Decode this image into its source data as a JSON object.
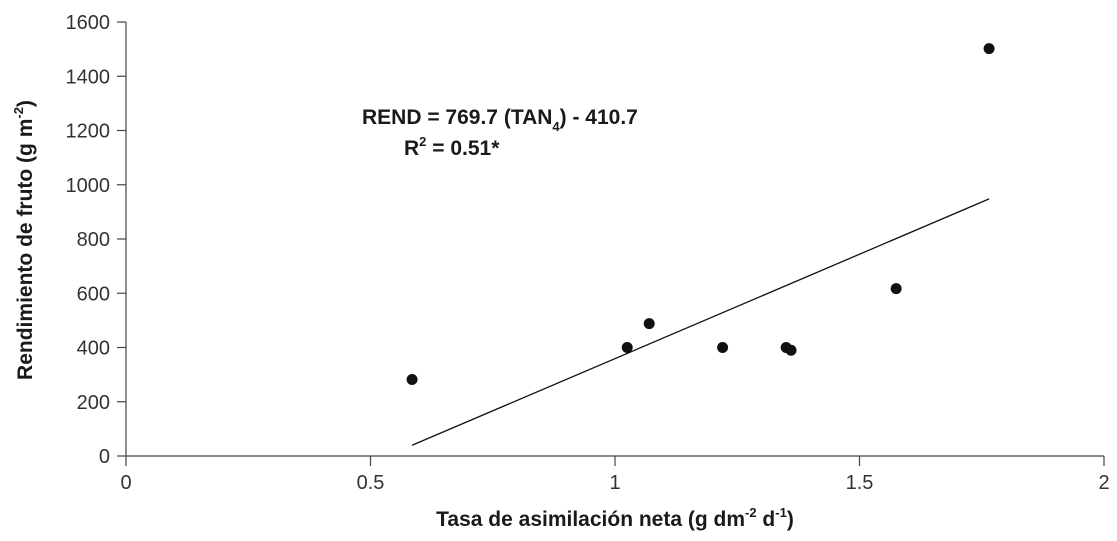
{
  "chart_data": {
    "type": "scatter",
    "xlabel": {
      "main": "Tasa de asimilación neta (g dm",
      "sup1": "-2",
      "mid": " d",
      "sup2": "-1",
      "end": ")"
    },
    "ylabel": {
      "main": "Rendimiento de fruto (g m",
      "sup": "-2",
      "end": ")"
    },
    "xlim": [
      0,
      2
    ],
    "ylim": [
      0,
      1600
    ],
    "xticks": [
      0,
      0.5,
      1,
      1.5,
      2
    ],
    "xtick_labels": [
      "0",
      "0.5",
      "1",
      "1.5",
      "2"
    ],
    "yticks": [
      0,
      200,
      400,
      600,
      800,
      1000,
      1200,
      1400,
      1600
    ],
    "ytick_labels": [
      "0",
      "200",
      "400",
      "600",
      "800",
      "1000",
      "1200",
      "1400",
      "1600"
    ],
    "grid": false,
    "points": [
      {
        "x": 0.585,
        "y": 282
      },
      {
        "x": 1.025,
        "y": 400
      },
      {
        "x": 1.07,
        "y": 488
      },
      {
        "x": 1.22,
        "y": 400
      },
      {
        "x": 1.35,
        "y": 400
      },
      {
        "x": 1.36,
        "y": 390
      },
      {
        "x": 1.575,
        "y": 617
      },
      {
        "x": 1.765,
        "y": 1502
      }
    ],
    "trendline": {
      "slope": 769.7,
      "intercept": -410.7,
      "x_range": [
        0.585,
        1.765
      ]
    },
    "annotation": {
      "eq_prefix": "REND = 769.7 (TAN",
      "eq_sub": "4",
      "eq_suffix": ") - 410.7",
      "r2_prefix": "R",
      "r2_sup": "2",
      "r2_suffix": " = 0.51*"
    },
    "colors": {
      "points": "#111111",
      "line": "#111111",
      "axis": "#444444"
    }
  }
}
